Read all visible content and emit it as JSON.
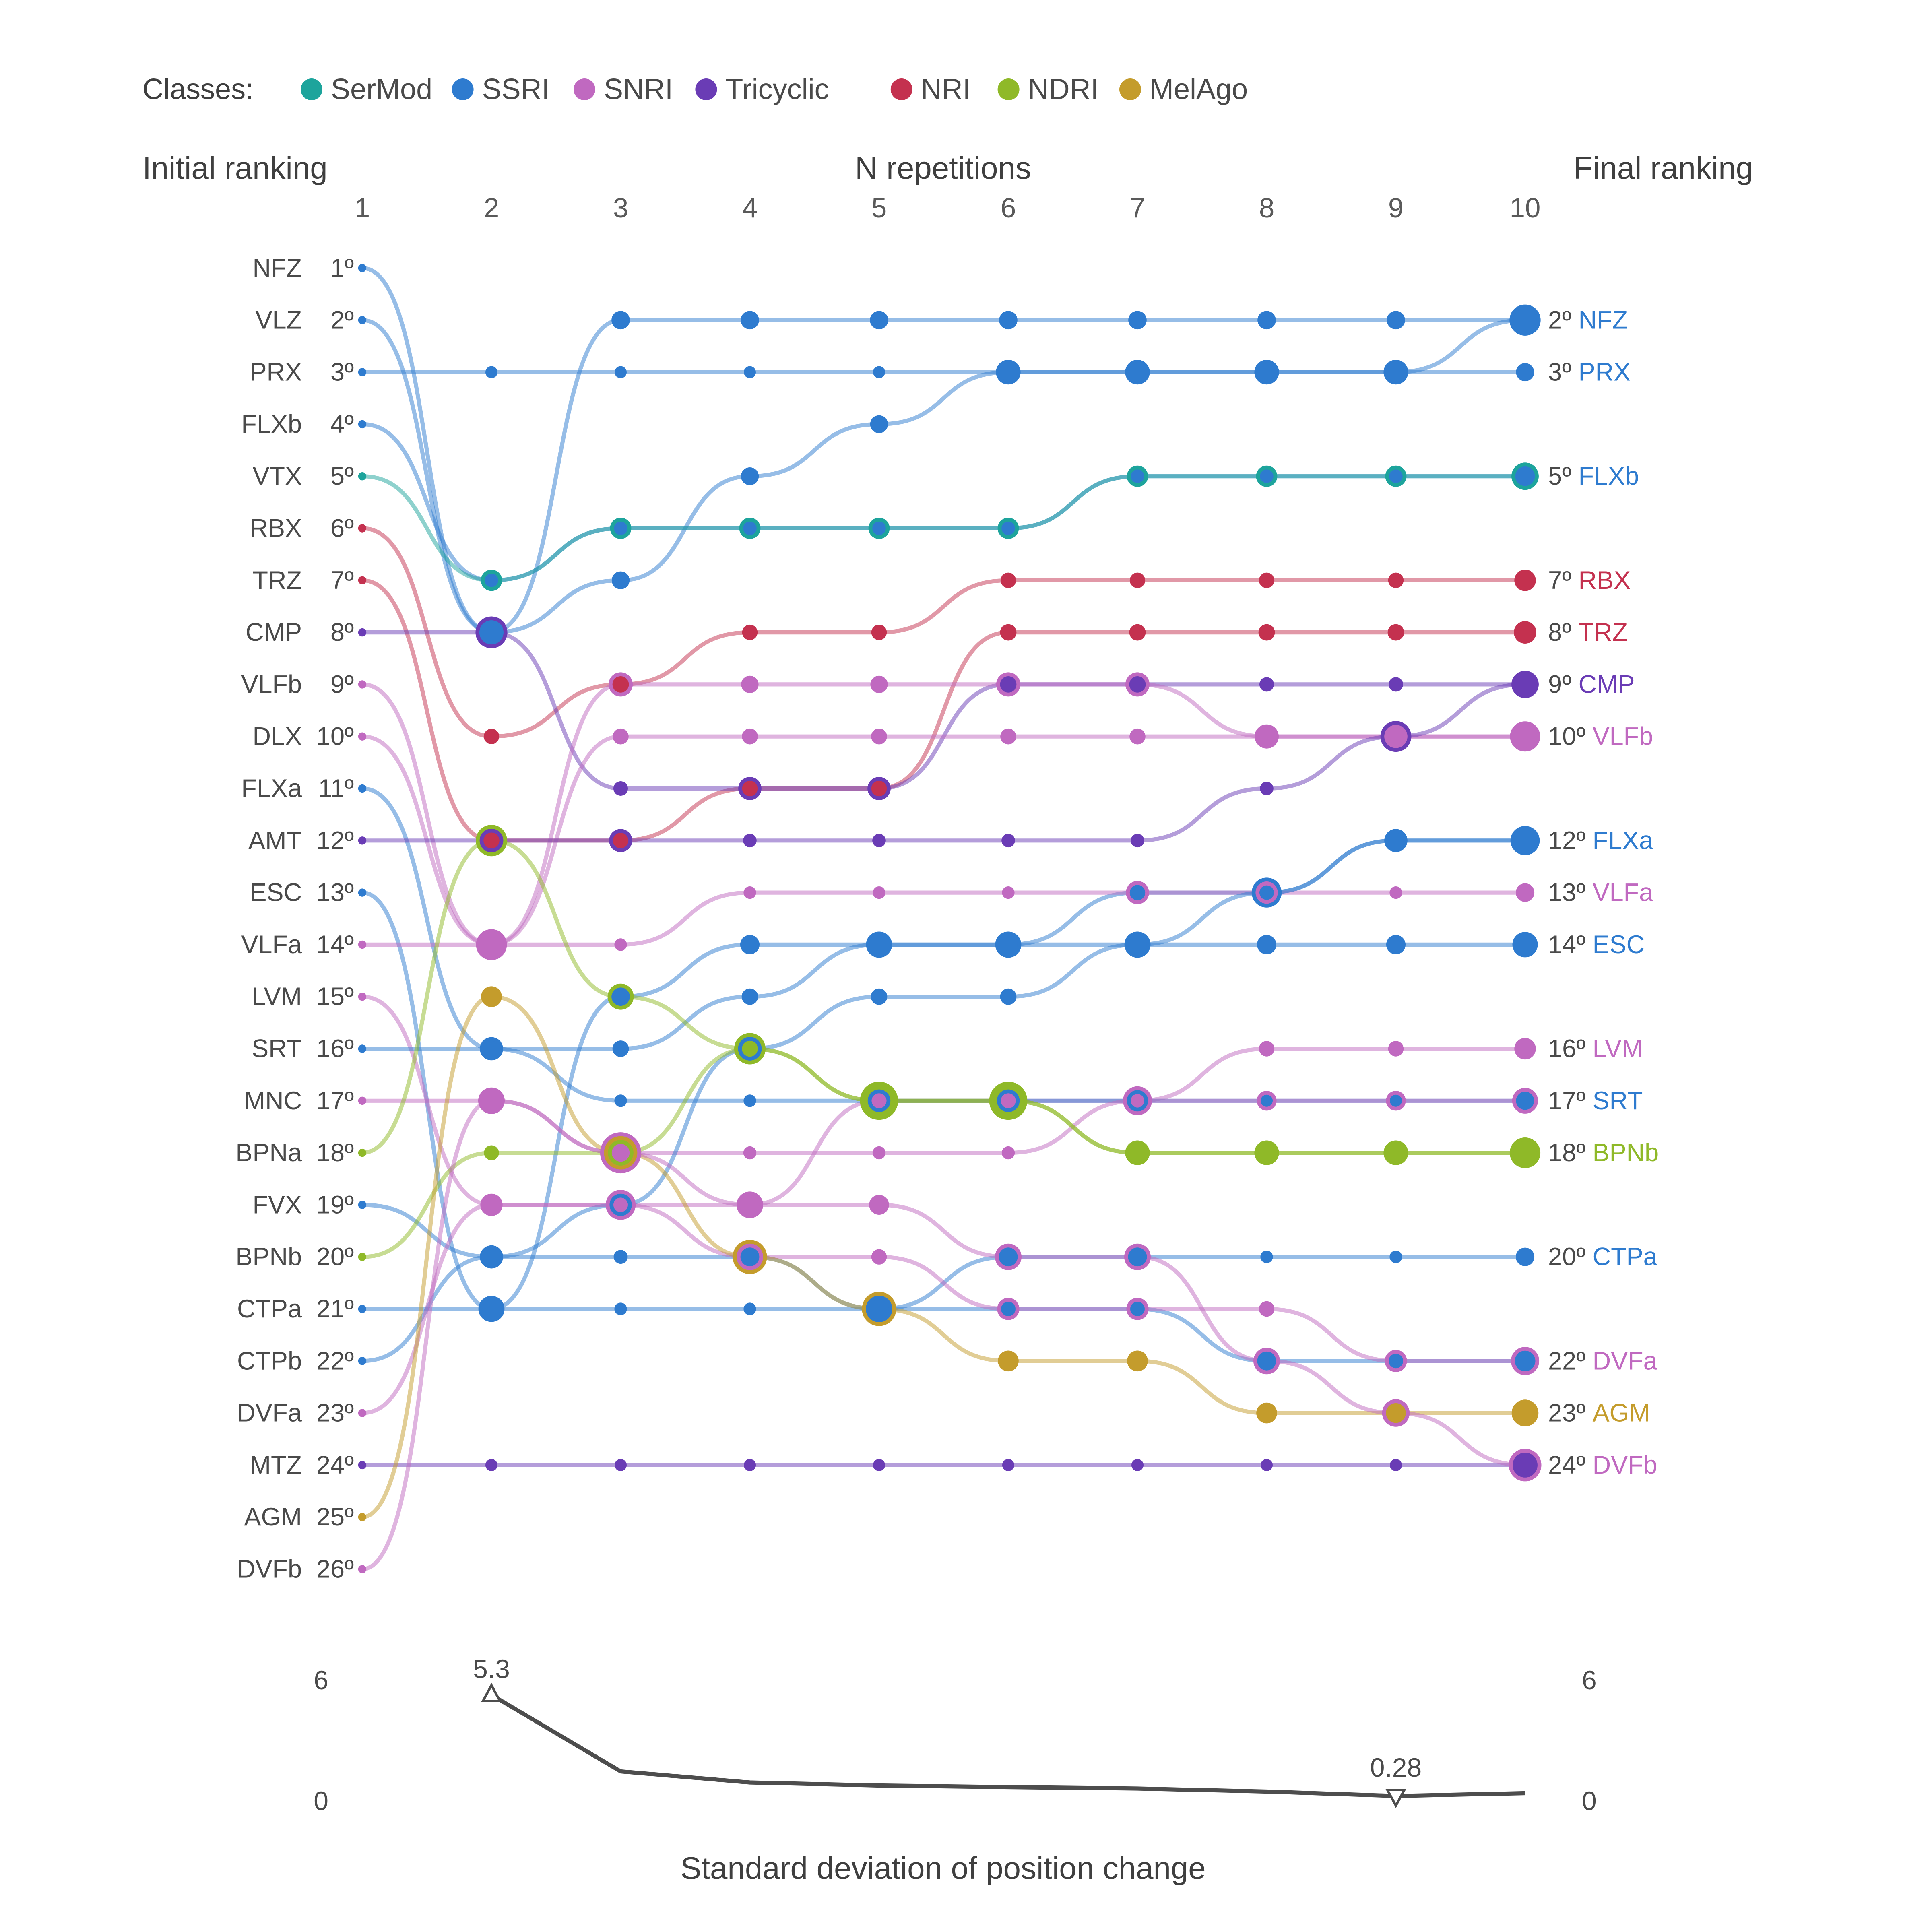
{
  "legend": {
    "title": "Classes:",
    "classes": [
      {
        "name": "SerMod",
        "color": "#1da49c"
      },
      {
        "name": "SSRI",
        "color": "#2e7bcf"
      },
      {
        "name": "SNRI",
        "color": "#c069c0"
      },
      {
        "name": "Tricyclic",
        "color": "#6a3cb5"
      },
      {
        "name": "NRI",
        "color": "#c4314f"
      },
      {
        "name": "NDRI",
        "color": "#8fb928"
      },
      {
        "name": "MelAgo",
        "color": "#c49c2c"
      }
    ]
  },
  "headers": {
    "left": "Initial ranking",
    "center": "N repetitions",
    "right": "Final ranking"
  },
  "axis": {
    "ticks": [
      "1",
      "2",
      "3",
      "4",
      "5",
      "6",
      "7",
      "8",
      "9",
      "10"
    ]
  },
  "ordinals": [
    "1º",
    "2º",
    "3º",
    "4º",
    "5º",
    "6º",
    "7º",
    "8º",
    "9º",
    "10º",
    "11º",
    "12º",
    "13º",
    "14º",
    "15º",
    "16º",
    "17º",
    "18º",
    "19º",
    "20º",
    "21º",
    "22º",
    "23º",
    "24º",
    "25º",
    "26º"
  ],
  "chart_data": {
    "type": "bump-rank",
    "x": [
      1,
      2,
      3,
      4,
      5,
      6,
      7,
      8,
      9,
      10
    ],
    "series": [
      {
        "name": "NFZ",
        "class": "SSRI",
        "positions": [
          1,
          8,
          2,
          2,
          2,
          2,
          2,
          2,
          2,
          2
        ]
      },
      {
        "name": "VLZ",
        "class": "SSRI",
        "positions": [
          2,
          8,
          7,
          5,
          4,
          3,
          3,
          3,
          3,
          2
        ]
      },
      {
        "name": "PRX",
        "class": "SSRI",
        "positions": [
          3,
          3,
          3,
          3,
          3,
          3,
          3,
          3,
          3,
          3
        ]
      },
      {
        "name": "FLXb",
        "class": "SSRI",
        "positions": [
          4,
          7,
          6,
          6,
          6,
          6,
          5,
          5,
          5,
          5
        ]
      },
      {
        "name": "VTX",
        "class": "SerMod",
        "positions": [
          5,
          7,
          6,
          6,
          6,
          6,
          5,
          5,
          5,
          5
        ]
      },
      {
        "name": "RBX",
        "class": "NRI",
        "positions": [
          6,
          10,
          9,
          8,
          8,
          7,
          7,
          7,
          7,
          7
        ]
      },
      {
        "name": "TRZ",
        "class": "NRI",
        "positions": [
          7,
          12,
          12,
          11,
          11,
          8,
          8,
          8,
          8,
          8
        ]
      },
      {
        "name": "CMP",
        "class": "Tricyclic",
        "positions": [
          8,
          8,
          11,
          11,
          11,
          9,
          9,
          9,
          9,
          9
        ]
      },
      {
        "name": "VLFb",
        "class": "SNRI",
        "positions": [
          9,
          14,
          9,
          9,
          9,
          9,
          9,
          10,
          10,
          10
        ]
      },
      {
        "name": "DLX",
        "class": "SNRI",
        "positions": [
          10,
          14,
          10,
          10,
          10,
          10,
          10,
          10,
          10,
          10
        ]
      },
      {
        "name": "FLXa",
        "class": "SSRI",
        "positions": [
          11,
          16,
          16,
          15,
          14,
          14,
          13,
          13,
          12,
          12
        ]
      },
      {
        "name": "AMT",
        "class": "Tricyclic",
        "positions": [
          12,
          12,
          12,
          12,
          12,
          12,
          12,
          11,
          10,
          9
        ]
      },
      {
        "name": "ESC",
        "class": "SSRI",
        "positions": [
          13,
          21,
          15,
          14,
          14,
          14,
          14,
          14,
          14,
          14
        ]
      },
      {
        "name": "VLFa",
        "class": "SNRI",
        "positions": [
          14,
          14,
          14,
          13,
          13,
          13,
          13,
          13,
          13,
          13
        ]
      },
      {
        "name": "LVM",
        "class": "SNRI",
        "positions": [
          15,
          19,
          19,
          19,
          17,
          17,
          17,
          16,
          16,
          16
        ]
      },
      {
        "name": "SRT",
        "class": "SSRI",
        "positions": [
          16,
          16,
          17,
          17,
          17,
          17,
          17,
          17,
          17,
          17
        ]
      },
      {
        "name": "MNC",
        "class": "SNRI",
        "positions": [
          17,
          17,
          18,
          18,
          18,
          18,
          17,
          17,
          17,
          17
        ]
      },
      {
        "name": "BPNa",
        "class": "NDRI",
        "positions": [
          18,
          12,
          15,
          16,
          17,
          17,
          18,
          18,
          18,
          18
        ]
      },
      {
        "name": "FVX",
        "class": "SSRI",
        "positions": [
          19,
          20,
          19,
          16,
          15,
          15,
          14,
          13,
          12,
          12
        ]
      },
      {
        "name": "BPNb",
        "class": "NDRI",
        "positions": [
          20,
          18,
          18,
          16,
          17,
          17,
          18,
          18,
          18,
          18
        ]
      },
      {
        "name": "CTPa",
        "class": "SSRI",
        "positions": [
          21,
          21,
          21,
          21,
          21,
          20,
          20,
          20,
          20,
          20
        ]
      },
      {
        "name": "CTPb",
        "class": "SSRI",
        "positions": [
          22,
          20,
          20,
          20,
          21,
          21,
          21,
          22,
          22,
          22
        ]
      },
      {
        "name": "DVFa",
        "class": "SNRI",
        "positions": [
          23,
          19,
          19,
          20,
          20,
          21,
          21,
          21,
          22,
          22
        ]
      },
      {
        "name": "MTZ",
        "class": "Tricyclic",
        "positions": [
          24,
          24,
          24,
          24,
          24,
          24,
          24,
          24,
          24,
          24
        ]
      },
      {
        "name": "AGM",
        "class": "MelAgo",
        "positions": [
          25,
          15,
          18,
          20,
          21,
          22,
          22,
          23,
          23,
          23
        ]
      },
      {
        "name": "DVFb",
        "class": "SNRI",
        "positions": [
          26,
          17,
          18,
          19,
          19,
          20,
          20,
          22,
          23,
          24
        ]
      }
    ],
    "final_ranking": [
      {
        "rank": 2,
        "label": "2º",
        "drug": "NFZ"
      },
      {
        "rank": 3,
        "label": "3º",
        "drug": "PRX"
      },
      {
        "rank": 5,
        "label": "5º",
        "drug": "FLXb"
      },
      {
        "rank": 7,
        "label": "7º",
        "drug": "RBX"
      },
      {
        "rank": 8,
        "label": "8º",
        "drug": "TRZ"
      },
      {
        "rank": 9,
        "label": "9º",
        "drug": "CMP"
      },
      {
        "rank": 10,
        "label": "10º",
        "drug": "VLFb"
      },
      {
        "rank": 12,
        "label": "12º",
        "drug": "FLXa"
      },
      {
        "rank": 13,
        "label": "13º",
        "drug": "VLFa"
      },
      {
        "rank": 14,
        "label": "14º",
        "drug": "ESC"
      },
      {
        "rank": 16,
        "label": "16º",
        "drug": "LVM"
      },
      {
        "rank": 17,
        "label": "17º",
        "drug": "SRT"
      },
      {
        "rank": 18,
        "label": "18º",
        "drug": "BPNb"
      },
      {
        "rank": 20,
        "label": "20º",
        "drug": "CTPa"
      },
      {
        "rank": 22,
        "label": "22º",
        "drug": "DVFa"
      },
      {
        "rank": 23,
        "label": "23º",
        "drug": "AGM"
      },
      {
        "rank": 24,
        "label": "24º",
        "drug": "DVFb"
      }
    ]
  },
  "sd_chart": {
    "title": "Standard deviation of position change",
    "ylim": [
      0,
      6
    ],
    "yticks": {
      "top": "6",
      "bottom": "0"
    },
    "values": [
      [
        2,
        5.3
      ],
      [
        3,
        1.5
      ],
      [
        4,
        0.95
      ],
      [
        5,
        0.8
      ],
      [
        6,
        0.72
      ],
      [
        7,
        0.65
      ],
      [
        8,
        0.5
      ],
      [
        9,
        0.28
      ],
      [
        10,
        0.42
      ]
    ],
    "annotations": [
      {
        "x": 2,
        "value": 5.3,
        "text": "5.3",
        "marker": "up"
      },
      {
        "x": 9,
        "value": 0.28,
        "text": "0.28",
        "marker": "down"
      }
    ]
  }
}
